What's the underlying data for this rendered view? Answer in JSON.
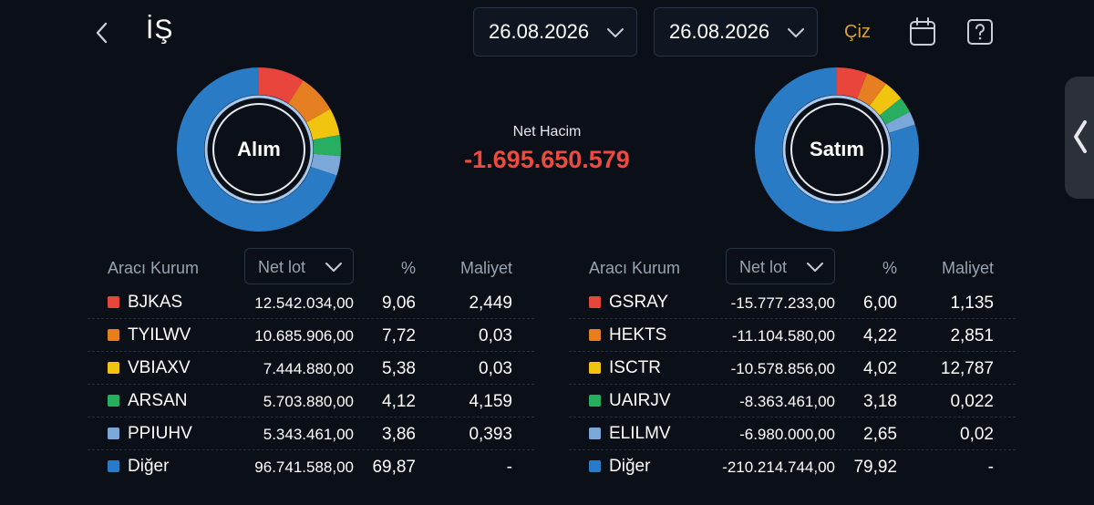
{
  "header": {
    "title": "İŞ",
    "date_start": "26.08.2026",
    "date_end": "26.08.2026",
    "draw_label": "Çiz",
    "icons": [
      "chevron-left-icon",
      "chevron-down-icon",
      "calendar-icon",
      "help-icon",
      "chevron-left-icon"
    ]
  },
  "colors": {
    "background": "#0b1018",
    "negative": "#f04a3e",
    "accent": "#d9a23a",
    "series": [
      "#e8453c",
      "#e67e22",
      "#f1c40f",
      "#27ae60",
      "#7ba7d9",
      "#2a7bc6"
    ]
  },
  "buy": {
    "donut_label": "Alım",
    "column_headers": {
      "broker": "Aracı Kurum",
      "metric": "Net lot",
      "pct": "%",
      "cost": "Maliyet"
    },
    "rows": [
      {
        "name": "BJKAS",
        "lot": "12.542.034,00",
        "pct": "9,06",
        "cost": "2,449"
      },
      {
        "name": "TYILWV",
        "lot": "10.685.906,00",
        "pct": "7,72",
        "cost": "0,03"
      },
      {
        "name": "VBIAXV",
        "lot": "7.444.880,00",
        "pct": "5,38",
        "cost": "0,03"
      },
      {
        "name": "ARSAN",
        "lot": "5.703.880,00",
        "pct": "4,12",
        "cost": "4,159"
      },
      {
        "name": "PPIUHV",
        "lot": "5.343.461,00",
        "pct": "3,86",
        "cost": "0,393"
      },
      {
        "name": "Diğer",
        "lot": "96.741.588,00",
        "pct": "69,87",
        "cost": "-"
      }
    ],
    "share": [
      9.06,
      7.72,
      5.38,
      4.12,
      3.86,
      69.87
    ]
  },
  "net": {
    "title": "Net Hacim",
    "value": "-1.695.650.579"
  },
  "sell": {
    "donut_label": "Satım",
    "column_headers": {
      "broker": "Aracı Kurum",
      "metric": "Net lot",
      "pct": "%",
      "cost": "Maliyet"
    },
    "rows": [
      {
        "name": "GSRAY",
        "lot": "-15.777.233,00",
        "pct": "6,00",
        "cost": "1,135"
      },
      {
        "name": "HEKTS",
        "lot": "-11.104.580,00",
        "pct": "4,22",
        "cost": "2,851"
      },
      {
        "name": "ISCTR",
        "lot": "-10.578.856,00",
        "pct": "4,02",
        "cost": "12,787"
      },
      {
        "name": "UAIRJV",
        "lot": "-8.363.461,00",
        "pct": "3,18",
        "cost": "0,022"
      },
      {
        "name": "ELILMV",
        "lot": "-6.980.000,00",
        "pct": "2,65",
        "cost": "0,02"
      },
      {
        "name": "Diğer",
        "lot": "-210.214.744,00",
        "pct": "79,92",
        "cost": "-"
      }
    ],
    "share": [
      6.0,
      4.22,
      4.02,
      3.18,
      2.65,
      79.92
    ]
  }
}
